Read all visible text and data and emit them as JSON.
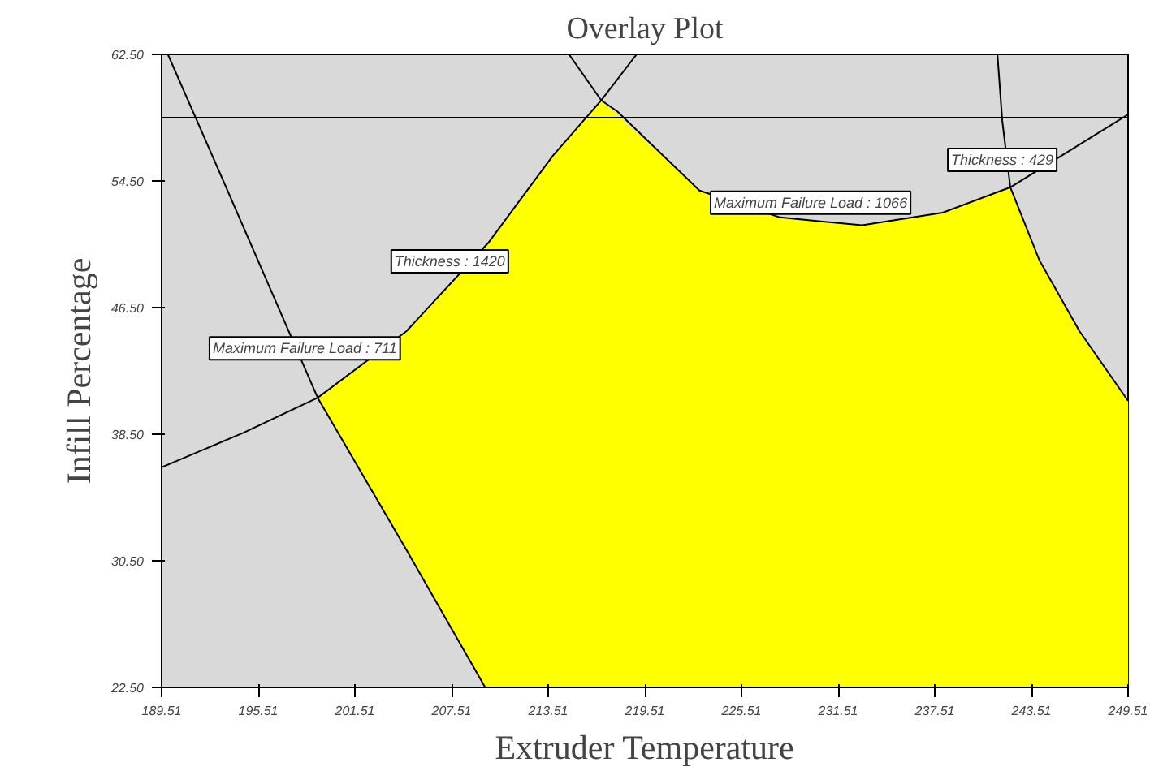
{
  "chart_data": {
    "type": "line",
    "title": "Overlay Plot",
    "xlabel": "Extruder Temperature",
    "ylabel": "Infill Percentage",
    "xlim": [
      189.51,
      249.51
    ],
    "ylim": [
      22.5,
      62.5
    ],
    "xticks": [
      189.51,
      195.51,
      201.51,
      207.51,
      213.51,
      219.51,
      225.51,
      231.51,
      237.51,
      243.51,
      249.51
    ],
    "yticks": [
      {
        "value": 22.5,
        "label": "22.50"
      },
      {
        "value": 30.5,
        "label": "30.50"
      },
      {
        "value": 38.5,
        "label": "38.50"
      },
      {
        "value": 46.5,
        "label": "46.50"
      },
      {
        "value": 54.5,
        "label": "54.50"
      },
      {
        "value": 62.5,
        "label": "62.50"
      }
    ],
    "grid": false,
    "series": [
      {
        "type": "area",
        "color": "#ffff00",
        "x": [
          199.2,
          204.7,
          209.6,
          213.8,
          216.8,
          222.9,
          227.9,
          233.0,
          238.0,
          242.2,
          244.0,
          246.5,
          249.51,
          249.51,
          209.6,
          204.7
        ],
        "values": [
          40.8,
          45.0,
          50.4,
          56.1,
          59.6,
          53.9,
          52.2,
          51.7,
          52.5,
          54.1,
          49.5,
          45.0,
          40.6,
          22.5,
          22.5,
          31.2
        ]
      },
      {
        "color": "#000000",
        "x": [
          189.9,
          193.6,
          199.2,
          204.7,
          209.6
        ],
        "values": [
          62.5,
          53.9,
          40.8,
          31.2,
          22.5
        ]
      },
      {
        "color": "#000000",
        "x": [
          189.51,
          194.6,
          199.2,
          204.7,
          209.8,
          213.8,
          216.8,
          219.0
        ],
        "values": [
          36.4,
          38.6,
          40.8,
          45.0,
          50.6,
          56.1,
          59.6,
          62.5
        ]
      },
      {
        "color": "#000000",
        "x": [
          214.8,
          216.8,
          217.8,
          222.9,
          227.9,
          233.0,
          238.0,
          242.2,
          249.51
        ],
        "values": [
          62.5,
          59.6,
          58.9,
          53.9,
          52.2,
          51.7,
          52.5,
          54.1,
          58.7
        ]
      },
      {
        "color": "#000000",
        "x": [
          241.4,
          241.7,
          242.2,
          244.0,
          246.5,
          249.51
        ],
        "values": [
          62.5,
          58.3,
          54.1,
          49.5,
          45.0,
          40.6
        ]
      }
    ],
    "ref_lines": [
      {
        "axis": "y",
        "value": 58.5,
        "color": "#000000"
      }
    ],
    "annotations": [
      {
        "text": "Thickness : 1420",
        "x": 207.4,
        "y": 48.3
      },
      {
        "text": "Maximum Failure Load : 711",
        "x": 198.4,
        "y": 42.8
      },
      {
        "text": "Maximum Failure Load : 1066",
        "x": 229.8,
        "y": 52.0
      },
      {
        "text": "Thickness : 429",
        "x": 241.7,
        "y": 54.7
      }
    ]
  }
}
